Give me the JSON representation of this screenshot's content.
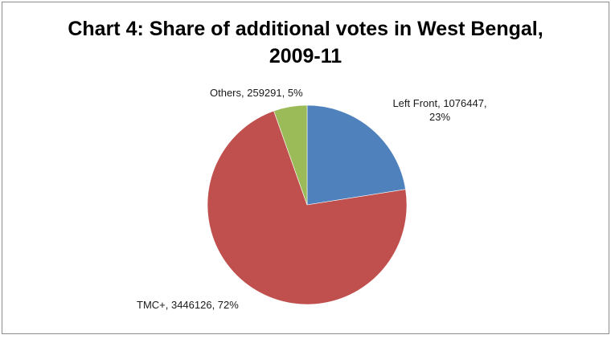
{
  "chart_data": {
    "type": "pie",
    "title": "Chart 4: Share of additional votes in West Bengal, 2009-11",
    "title_lines": [
      "Chart 4: Share of additional votes in West Bengal,",
      "2009-11"
    ],
    "slices": [
      {
        "name": "Left Front",
        "value": 1076447,
        "percent": 23,
        "color": "#4f81bd",
        "label_line1": "Left Front, 1076447,",
        "label_line2": "23%"
      },
      {
        "name": "TMC+",
        "value": 3446126,
        "percent": 72,
        "color": "#c0504d",
        "label_line1": "TMC+, 3446126, 72%",
        "label_line2": ""
      },
      {
        "name": "Others",
        "value": 259291,
        "percent": 5,
        "color": "#9bbb59",
        "label_line1": "Others, 259291, 5%",
        "label_line2": ""
      }
    ],
    "start_angle": "12 o'clock",
    "direction": "clockwise",
    "legend": "none"
  }
}
